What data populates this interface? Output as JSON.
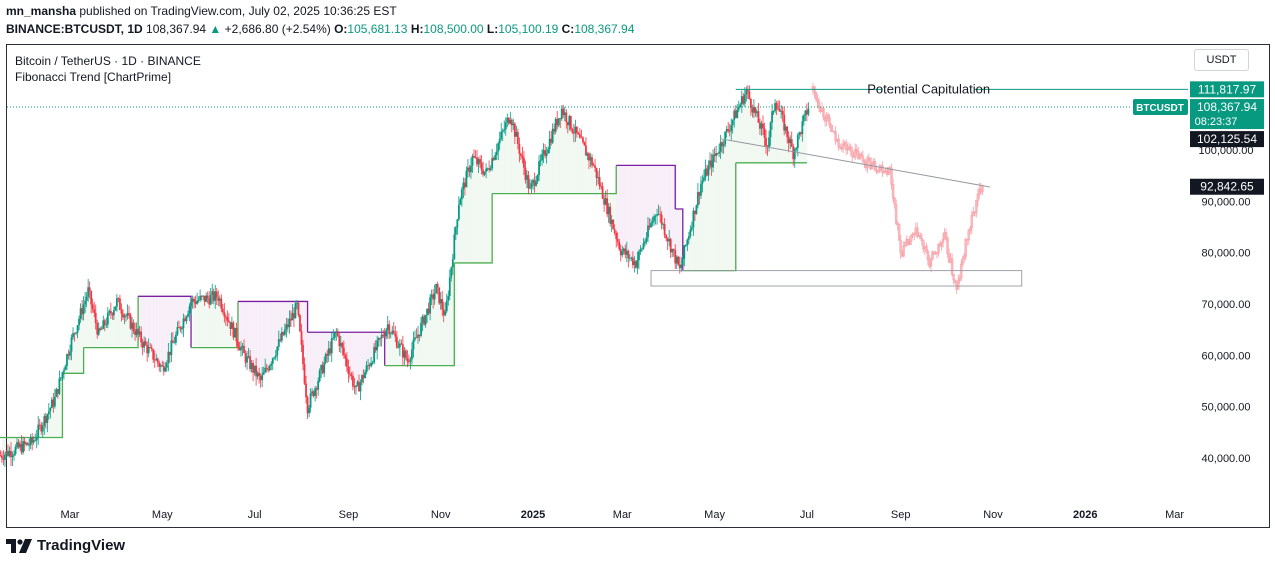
{
  "header": {
    "author": "mn_mansha",
    "published_text": "published on TradingView.com, July 02, 2025 10:36:25 EST",
    "symbol": "BINANCE:BTCUSDT, 1D",
    "last": "108,367.94",
    "arrow": "▲",
    "change": "+2,686.80 (+2.54%)",
    "open_label": "O:",
    "open": "105,681.13",
    "high_label": "H:",
    "high": "108,500.00",
    "low_label": "L:",
    "low": "105,100.19",
    "close_label": "C:",
    "close": "108,367.94"
  },
  "legend": {
    "title": "Bitcoin / TetherUS · 1D · BINANCE",
    "indicator": "Fibonacci Trend [ChartPrime]"
  },
  "currency_button": "USDT",
  "footer": {
    "brand": "TradingView"
  },
  "colors": {
    "up": "#089981",
    "down": "#f23645",
    "fib_up": "#4caf50",
    "fib_down": "#7b1fa2",
    "projection": "#f7a8ae",
    "badge_green": "#089981",
    "badge_black": "#131722"
  },
  "chart_data": {
    "type": "candlestick",
    "title": "Bitcoin / TetherUS · 1D · BINANCE",
    "x_tick_labels": [
      "Mar",
      "May",
      "Jul",
      "Sep",
      "Nov",
      "2025",
      "Mar",
      "May",
      "Jul",
      "Sep",
      "Nov",
      "2026",
      "Mar"
    ],
    "y_tick_labels": [
      "40,000.00",
      "50,000.00",
      "60,000.00",
      "70,000.00",
      "80,000.00",
      "90,000.00",
      "100,000.00"
    ],
    "ylim": [
      37500,
      114000
    ],
    "price_path": [
      {
        "date": "2024-01-15",
        "price": 40500
      },
      {
        "date": "2024-02-05",
        "price": 43000
      },
      {
        "date": "2024-02-20",
        "price": 51500
      },
      {
        "date": "2024-03-01",
        "price": 62000
      },
      {
        "date": "2024-03-13",
        "price": 72500
      },
      {
        "date": "2024-03-20",
        "price": 64000
      },
      {
        "date": "2024-04-01",
        "price": 70500
      },
      {
        "date": "2024-04-18",
        "price": 62500
      },
      {
        "date": "2024-05-01",
        "price": 57500
      },
      {
        "date": "2024-05-20",
        "price": 70500
      },
      {
        "date": "2024-06-07",
        "price": 71500
      },
      {
        "date": "2024-06-24",
        "price": 60000
      },
      {
        "date": "2024-07-05",
        "price": 55000
      },
      {
        "date": "2024-07-29",
        "price": 69500
      },
      {
        "date": "2024-08-05",
        "price": 50000
      },
      {
        "date": "2024-08-24",
        "price": 64500
      },
      {
        "date": "2024-09-06",
        "price": 53000
      },
      {
        "date": "2024-09-27",
        "price": 66000
      },
      {
        "date": "2024-10-10",
        "price": 59000
      },
      {
        "date": "2024-10-29",
        "price": 73000
      },
      {
        "date": "2024-11-04",
        "price": 67500
      },
      {
        "date": "2024-11-13",
        "price": 90000
      },
      {
        "date": "2024-11-22",
        "price": 98500
      },
      {
        "date": "2024-12-01",
        "price": 95500
      },
      {
        "date": "2024-12-17",
        "price": 107000
      },
      {
        "date": "2024-12-30",
        "price": 92000
      },
      {
        "date": "2025-01-20",
        "price": 108000
      },
      {
        "date": "2025-02-10",
        "price": 97000
      },
      {
        "date": "2025-02-28",
        "price": 80500
      },
      {
        "date": "2025-03-10",
        "price": 78000
      },
      {
        "date": "2025-03-24",
        "price": 88500
      },
      {
        "date": "2025-04-08",
        "price": 76500
      },
      {
        "date": "2025-04-22",
        "price": 93500
      },
      {
        "date": "2025-05-10",
        "price": 104000
      },
      {
        "date": "2025-05-22",
        "price": 111500
      },
      {
        "date": "2025-06-05",
        "price": 101000
      },
      {
        "date": "2025-06-10",
        "price": 110000
      },
      {
        "date": "2025-06-22",
        "price": 99500
      },
      {
        "date": "2025-07-02",
        "price": 108368
      }
    ],
    "fibonacci_trend_line": [
      {
        "date": "2024-01-10",
        "price": 44000,
        "trend": "up"
      },
      {
        "date": "2024-02-25",
        "price": 56500,
        "trend": "up"
      },
      {
        "date": "2024-03-10",
        "price": 61500,
        "trend": "up"
      },
      {
        "date": "2024-04-15",
        "price": 71500,
        "trend": "down"
      },
      {
        "date": "2024-05-20",
        "price": 61500,
        "trend": "up"
      },
      {
        "date": "2024-06-20",
        "price": 70500,
        "trend": "down"
      },
      {
        "date": "2024-08-05",
        "price": 64500,
        "trend": "down"
      },
      {
        "date": "2024-09-25",
        "price": 58000,
        "trend": "up"
      },
      {
        "date": "2024-11-10",
        "price": 78000,
        "trend": "up"
      },
      {
        "date": "2024-12-05",
        "price": 91500,
        "trend": "up"
      },
      {
        "date": "2025-02-20",
        "price": 91500,
        "trend": "up"
      },
      {
        "date": "2025-02-25",
        "price": 97000,
        "trend": "down"
      },
      {
        "date": "2025-04-05",
        "price": 88500,
        "trend": "down"
      },
      {
        "date": "2025-04-10",
        "price": 76500,
        "trend": "up"
      },
      {
        "date": "2025-05-15",
        "price": 97500,
        "trend": "up"
      },
      {
        "date": "2025-07-01",
        "price": 97500,
        "trend": "up"
      }
    ],
    "projection_path": [
      {
        "date": "2025-07-05",
        "price": 111800
      },
      {
        "date": "2025-07-20",
        "price": 102000
      },
      {
        "date": "2025-08-10",
        "price": 97500
      },
      {
        "date": "2025-08-25",
        "price": 96000
      },
      {
        "date": "2025-09-01",
        "price": 80000
      },
      {
        "date": "2025-09-12",
        "price": 84000
      },
      {
        "date": "2025-09-20",
        "price": 78000
      },
      {
        "date": "2025-09-30",
        "price": 83000
      },
      {
        "date": "2025-10-08",
        "price": 72500
      },
      {
        "date": "2025-10-15",
        "price": 83000
      },
      {
        "date": "2025-10-25",
        "price": 94000
      }
    ],
    "annotations": {
      "capitulation_label": "Potential Capitulation",
      "capitulation_level": 111817.97,
      "support_zone": {
        "from": "2025-03-20",
        "to": "2025-11-20",
        "low": 73500,
        "high": 76500
      },
      "trendline": {
        "start": {
          "date": "2025-05-05",
          "price": 102200
        },
        "end": {
          "date": "2025-10-30",
          "price": 92800
        }
      }
    },
    "price_labels": [
      {
        "id": "capitulation",
        "text": "111,817.97",
        "value": 111817.97,
        "style": "green"
      },
      {
        "id": "last_price",
        "symbol": "BTCUSDT",
        "text": "108,367.94",
        "countdown": "08:23:37",
        "value": 108367.94,
        "style": "green"
      },
      {
        "id": "level_102",
        "text": "102,125.54",
        "value": 102125.54,
        "style": "black"
      },
      {
        "id": "level_92",
        "text": "92,842.65",
        "value": 92842.65,
        "style": "black"
      }
    ]
  }
}
